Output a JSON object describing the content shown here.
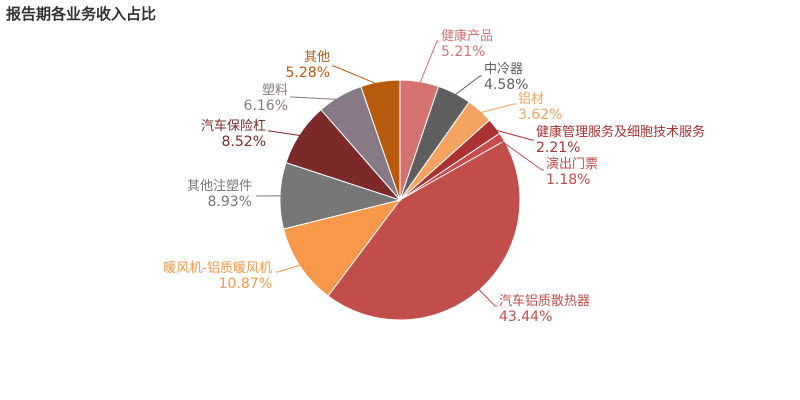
{
  "chart_data": {
    "type": "pie",
    "title": "报告期各业务收入占比",
    "slices": [
      {
        "label": "健康产品",
        "value": 5.21,
        "value_label": "5.21%",
        "color": "#d47272"
      },
      {
        "label": "中冷器",
        "value": 4.58,
        "value_label": "4.58%",
        "color": "#5f5f5f"
      },
      {
        "label": "铝材",
        "value": 3.62,
        "value_label": "3.62%",
        "color": "#f4a460"
      },
      {
        "label": "健康管理服务及细胞技术服务",
        "value": 2.21,
        "value_label": "2.21%",
        "color": "#a93233"
      },
      {
        "label": "演出门票",
        "value": 1.18,
        "value_label": "1.18%",
        "color": "#c94a4a"
      },
      {
        "label": "汽车铝质散热器",
        "value": 43.44,
        "value_label": "43.44%",
        "color": "#c24e4c"
      },
      {
        "label": "暖风机-铝质暖风机",
        "value": 10.87,
        "value_label": "10.87%",
        "color": "#f7984a"
      },
      {
        "label": "其他注塑件",
        "value": 8.93,
        "value_label": "8.93%",
        "color": "#777777"
      },
      {
        "label": "汽车保险杠",
        "value": 8.52,
        "value_label": "8.52%",
        "color": "#7b2929"
      },
      {
        "label": "塑料",
        "value": 6.16,
        "value_label": "6.16%",
        "color": "#877a86"
      },
      {
        "label": "其他",
        "value": 5.28,
        "value_label": "5.28%",
        "color": "#b85a0d"
      }
    ]
  }
}
